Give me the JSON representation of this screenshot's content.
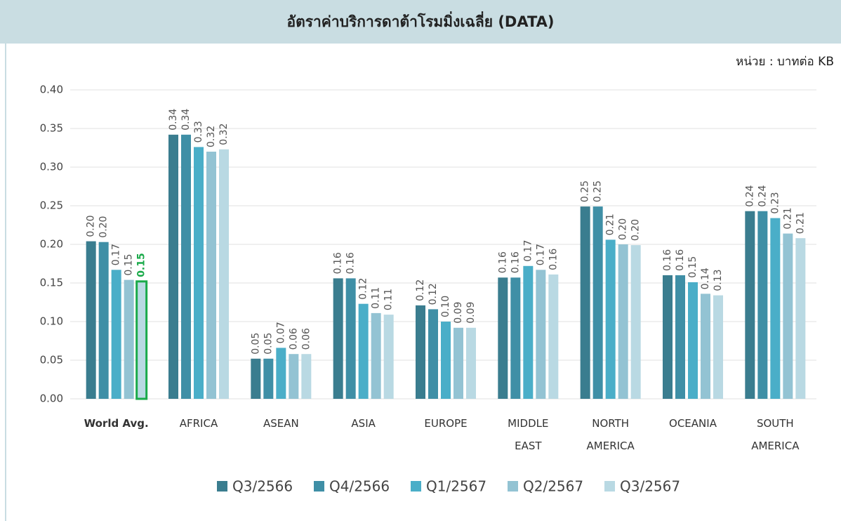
{
  "chart_data": {
    "type": "bar",
    "title": "อัตราค่าบริการดาต้าโรมมิ่งเฉลี่ย (DATA)",
    "unit_label": "หน่วย : บาทต่อ KB",
    "categories": [
      "World Avg.",
      "AFRICA",
      "ASEAN",
      "ASIA",
      "EUROPE",
      "MIDDLE\nEAST",
      "NORTH\nAMERICA",
      "OCEANIA",
      "SOUTH\nAMERICA"
    ],
    "series": [
      {
        "name": "Q3/2566",
        "color": "#3a7d8f",
        "values": [
          0.204,
          0.342,
          0.052,
          0.156,
          0.121,
          0.157,
          0.249,
          0.16,
          0.243
        ],
        "value_labels": [
          "0.20",
          "0.34",
          "0.05",
          "0.16",
          "0.12",
          "0.16",
          "0.25",
          "0.16",
          "0.24"
        ]
      },
      {
        "name": "Q4/2566",
        "color": "#3f8fa6",
        "values": [
          0.203,
          0.342,
          0.052,
          0.156,
          0.116,
          0.157,
          0.249,
          0.16,
          0.243
        ],
        "value_labels": [
          "0.20",
          "0.34",
          "0.05",
          "0.16",
          "0.12",
          "0.16",
          "0.25",
          "0.16",
          "0.24"
        ]
      },
      {
        "name": "Q1/2567",
        "color": "#4aaec8",
        "values": [
          0.167,
          0.326,
          0.066,
          0.123,
          0.1,
          0.172,
          0.206,
          0.151,
          0.234
        ],
        "value_labels": [
          "0.17",
          "0.33",
          "0.07",
          "0.12",
          "0.10",
          "0.17",
          "0.21",
          "0.15",
          "0.23"
        ]
      },
      {
        "name": "Q2/2567",
        "color": "#93c3d3",
        "values": [
          0.154,
          0.32,
          0.058,
          0.111,
          0.092,
          0.167,
          0.2,
          0.136,
          0.214
        ],
        "value_labels": [
          "0.15",
          "0.32",
          "0.06",
          "0.11",
          "0.09",
          "0.17",
          "0.20",
          "0.14",
          "0.21"
        ]
      },
      {
        "name": "Q3/2567",
        "color": "#b9d9e3",
        "values": [
          0.152,
          0.323,
          0.058,
          0.109,
          0.092,
          0.161,
          0.199,
          0.134,
          0.208
        ],
        "value_labels": [
          "0.15",
          "0.32",
          "0.06",
          "0.11",
          "0.09",
          "0.16",
          "0.20",
          "0.13",
          "0.21"
        ]
      }
    ],
    "highlight": {
      "series": 4,
      "category": 0,
      "color": "#1aaa4a"
    },
    "ylim": [
      0,
      0.4
    ],
    "yticks": [
      {
        "value": 0,
        "label": "0.00"
      },
      {
        "value": 0.05,
        "label": "0.05"
      },
      {
        "value": 0.1,
        "label": "0.10"
      },
      {
        "value": 0.15,
        "label": "0.15"
      },
      {
        "value": 0.2,
        "label": "0.20"
      },
      {
        "value": 0.25,
        "label": "0.25"
      },
      {
        "value": 0.3,
        "label": "0.30"
      },
      {
        "value": 0.35,
        "label": "0.35"
      },
      {
        "value": 0.4,
        "label": "0.40"
      }
    ],
    "grid": true,
    "legend": "bottom"
  }
}
